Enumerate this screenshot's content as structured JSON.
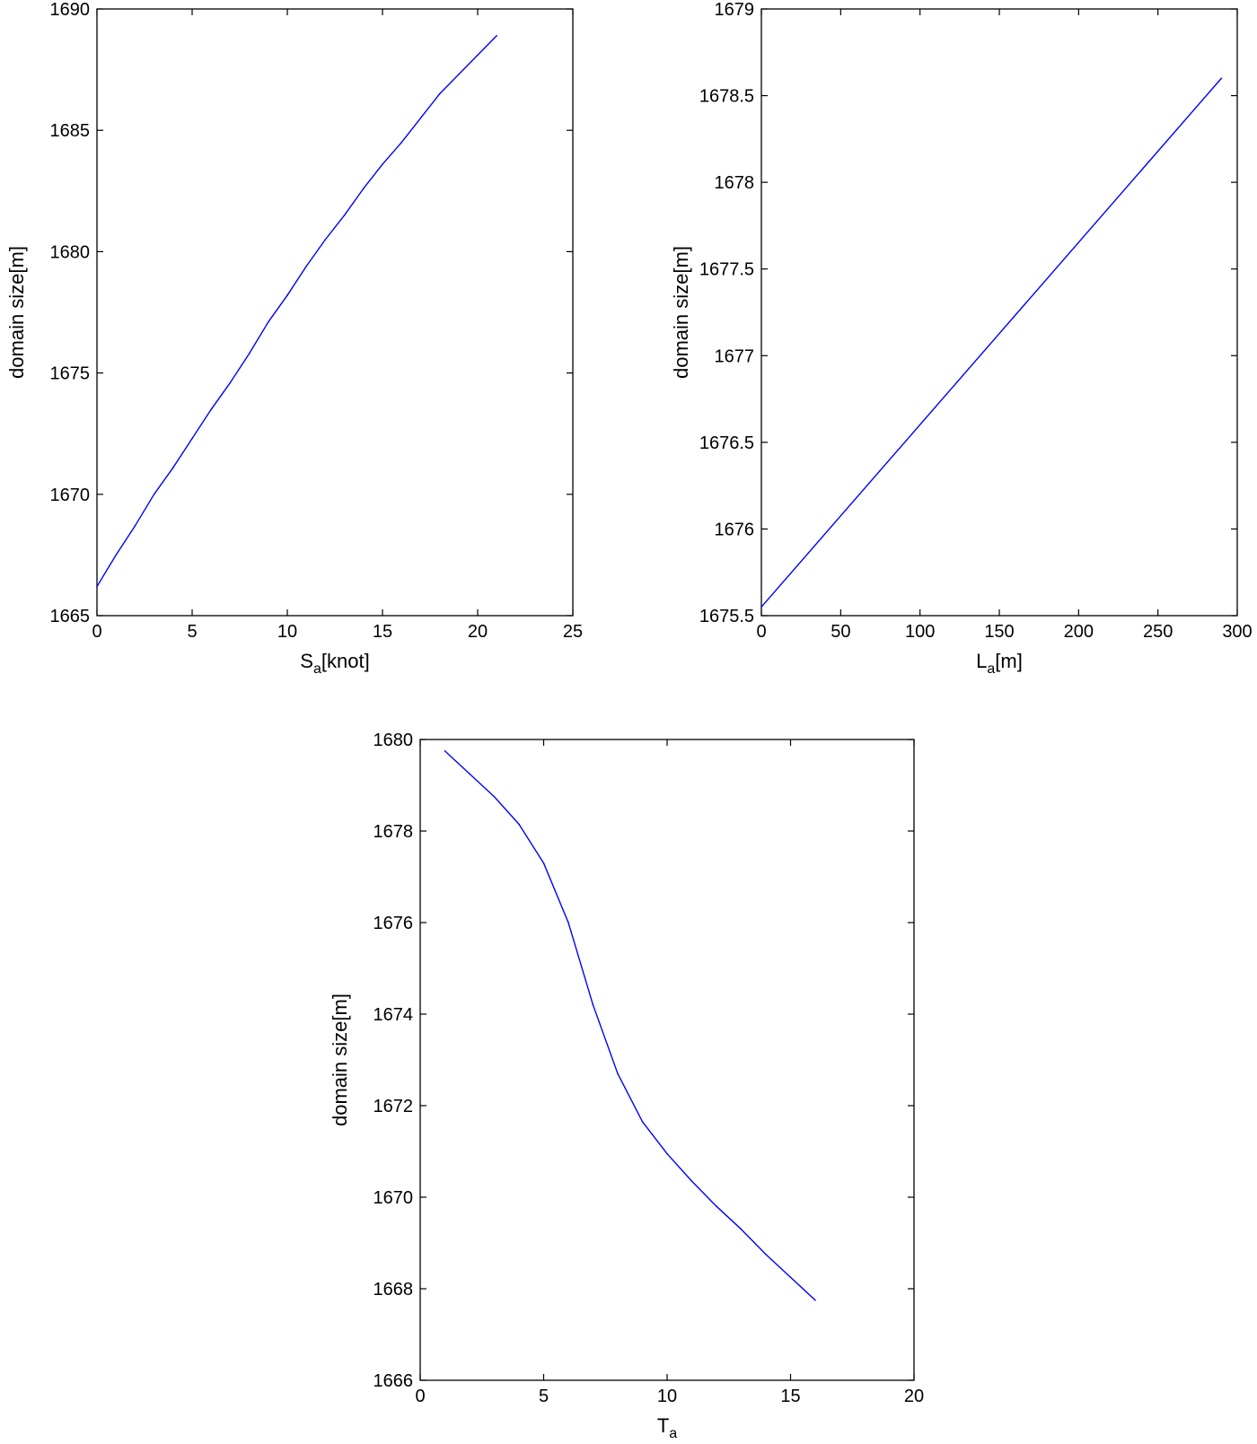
{
  "chart_data": [
    {
      "type": "line",
      "xlabel": {
        "base": "S",
        "sub": "a",
        "rest": "[knot]"
      },
      "ylabel": "domain size[m]",
      "xlim": [
        0,
        25
      ],
      "ylim": [
        1665,
        1690
      ],
      "xticks": [
        0,
        5,
        10,
        15,
        20,
        25
      ],
      "xtick_labels": [
        "0",
        "5",
        "10",
        "15",
        "20",
        "25"
      ],
      "yticks": [
        1665,
        1670,
        1675,
        1680,
        1685,
        1690
      ],
      "ytick_labels": [
        "1665",
        "1670",
        "1675",
        "1680",
        "1685",
        "1690"
      ],
      "grid": false,
      "line_color": "#0000ff",
      "x": [
        0,
        1,
        2,
        3,
        4,
        5,
        6,
        7,
        8,
        9,
        10,
        11,
        12,
        13,
        14,
        15,
        16,
        17,
        18,
        19,
        20,
        21
      ],
      "y": [
        1666.2,
        1667.5,
        1668.7,
        1670.0,
        1671.1,
        1672.3,
        1673.5,
        1674.6,
        1675.8,
        1677.1,
        1678.2,
        1679.4,
        1680.5,
        1681.5,
        1682.6,
        1683.6,
        1684.5,
        1685.5,
        1686.5,
        1687.3,
        1688.1,
        1688.9
      ]
    },
    {
      "type": "line",
      "xlabel": {
        "base": "L",
        "sub": "a",
        "rest": "[m]"
      },
      "ylabel": "domain size[m]",
      "xlim": [
        0,
        300
      ],
      "ylim": [
        1675.5,
        1679
      ],
      "xticks": [
        0,
        50,
        100,
        150,
        200,
        250,
        300
      ],
      "xtick_labels": [
        "0",
        "50",
        "100",
        "150",
        "200",
        "250",
        "300"
      ],
      "yticks": [
        1675.5,
        1676,
        1676.5,
        1677,
        1677.5,
        1678,
        1678.5,
        1679
      ],
      "ytick_labels": [
        "1675.5",
        "1676",
        "1676.5",
        "1677",
        "1677.5",
        "1678",
        "1678.5",
        "1679"
      ],
      "grid": false,
      "line_color": "#0000ff",
      "x": [
        0,
        290
      ],
      "y": [
        1675.55,
        1678.6
      ]
    },
    {
      "type": "line",
      "xlabel": {
        "base": "T",
        "sub": "a",
        "rest": ""
      },
      "ylabel": "domain size[m]",
      "xlim": [
        0,
        20
      ],
      "ylim": [
        1666,
        1680
      ],
      "xticks": [
        0,
        5,
        10,
        15,
        20
      ],
      "xtick_labels": [
        "0",
        "5",
        "10",
        "15",
        "20"
      ],
      "yticks": [
        1666,
        1668,
        1670,
        1672,
        1674,
        1676,
        1678,
        1680
      ],
      "ytick_labels": [
        "1666",
        "1668",
        "1670",
        "1672",
        "1674",
        "1676",
        "1678",
        "1680"
      ],
      "grid": false,
      "line_color": "#0000ff",
      "x": [
        1,
        2,
        3,
        4,
        5,
        6,
        7,
        8,
        9,
        10,
        11,
        12,
        13,
        14,
        15,
        16
      ],
      "y": [
        1679.75,
        1679.25,
        1678.75,
        1678.15,
        1677.3,
        1676.0,
        1674.2,
        1672.7,
        1671.65,
        1670.95,
        1670.35,
        1669.8,
        1669.3,
        1668.75,
        1668.25,
        1667.75
      ]
    }
  ]
}
